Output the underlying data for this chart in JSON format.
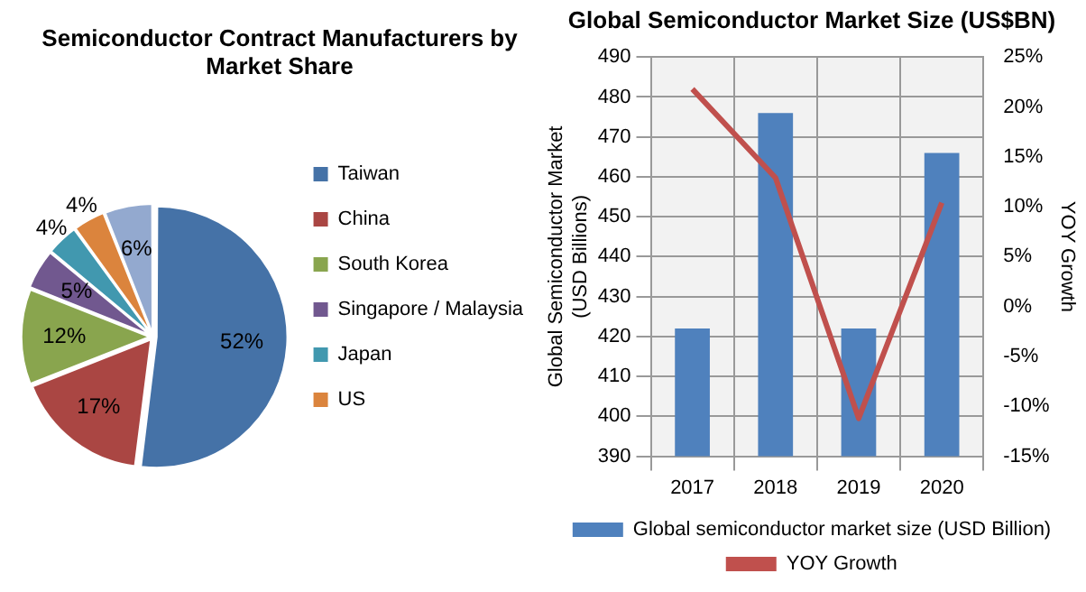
{
  "chart_data": [
    {
      "type": "pie",
      "title": "Semiconductor Contract Manufacturers by Market Share",
      "categories": [
        "Taiwan",
        "China",
        "South Korea",
        "Singapore / Malaysia",
        "Japan",
        "US",
        null
      ],
      "values": [
        52,
        17,
        12,
        5,
        4,
        4,
        6
      ],
      "value_labels": [
        "52%",
        "17%",
        "12%",
        "5%",
        "4%",
        "4%",
        "6%"
      ],
      "colors": [
        "#4572a7",
        "#aa4643",
        "#89a54e",
        "#71588f",
        "#4198af",
        "#db843d",
        "#93a9cf"
      ],
      "legend": "right"
    },
    {
      "type": "bar",
      "title": "Global Semiconductor Market Size (US$BN)",
      "categories": [
        "2017",
        "2018",
        "2019",
        "2020"
      ],
      "ylabel": "Global Semiconductor Market (USD Billions)",
      "y2label": "YOY Growth",
      "series": [
        {
          "name": "Global semiconductor market size (USD Billion)",
          "type": "bar",
          "color": "#4f81bd",
          "values": [
            422,
            476,
            422,
            466
          ]
        },
        {
          "name": "YOY Growth",
          "type": "line",
          "axis": "y2",
          "color": "#c0504d",
          "values": [
            21.8,
            12.9,
            -11.2,
            10.4
          ]
        }
      ],
      "ylim": [
        390,
        490
      ],
      "yticks": [
        390,
        400,
        410,
        420,
        430,
        440,
        450,
        460,
        470,
        480,
        490
      ],
      "y2lim": [
        -15,
        25
      ],
      "y2ticks": [
        {
          "value": -15,
          "label": "-15%"
        },
        {
          "value": -10,
          "label": "-10%"
        },
        {
          "value": -5,
          "label": "-5%"
        },
        {
          "value": 0,
          "label": "0%"
        },
        {
          "value": 5,
          "label": "5%"
        },
        {
          "value": 10,
          "label": "10%"
        },
        {
          "value": 15,
          "label": "15%"
        },
        {
          "value": 20,
          "label": "20%"
        },
        {
          "value": 25,
          "label": "25%"
        }
      ],
      "grid": true,
      "legend": "bottom",
      "marker": "none"
    }
  ]
}
